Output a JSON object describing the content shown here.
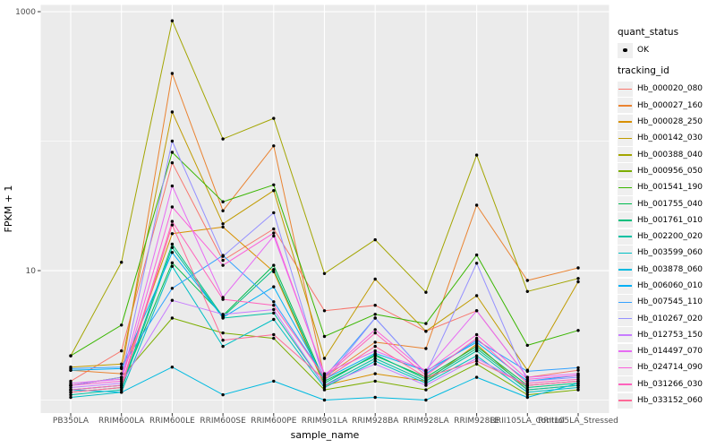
{
  "figure": {
    "background": "#FFFFFF",
    "panel_background": "#EBEBEB",
    "grid_color": "#FFFFFF",
    "axis_text_color": "#4D4D4D",
    "axis_title_color": "#000000",
    "tick_color": "#333333",
    "point_color": "#000000"
  },
  "legend": {
    "quant_title": "quant_status",
    "quant_items": [
      "OK"
    ],
    "tracking_title": "tracking_id"
  },
  "chart_data": {
    "type": "line",
    "title": "",
    "xlabel": "sample_name",
    "ylabel": "FPKM + 1",
    "y_scale": "log10",
    "grid": true,
    "legend_position": "right",
    "y_major_ticks": [
      {
        "value": 10,
        "label": "10"
      },
      {
        "value": 1000,
        "label": "1000"
      }
    ],
    "y_minor_ticks": [
      1,
      100
    ],
    "ylim_log10": [
      -0.1,
      3.05
    ],
    "categories": [
      "PB350LA",
      "RRIM600LA",
      "RRIM600LE",
      "RRIM600SE",
      "RRIM600PE",
      "RRIM901LA",
      "RRIM928BA",
      "RRIM928LA",
      "RRIM928LE",
      "RRII105LA_Control",
      "RRII105LA_Stressed"
    ],
    "series": [
      {
        "name": "Hb_000020_080",
        "color": "#F8766D",
        "quant_status": "OK",
        "values": [
          1.4,
          2.4,
          68,
          12,
          21,
          4.9,
          5.4,
          3.4,
          4.9,
          1.5,
          1.7
        ]
      },
      {
        "name": "Hb_000027_160",
        "color": "#EA8331",
        "quant_status": "OK",
        "values": [
          1.7,
          1.6,
          333,
          29,
          92,
          1.5,
          2.8,
          2.5,
          32,
          8.4,
          10.5
        ]
      },
      {
        "name": "Hb_000028_250",
        "color": "#D89000",
        "quant_status": "OK",
        "values": [
          1.3,
          1.5,
          19.3,
          21.7,
          9.8,
          1.3,
          1.6,
          1.4,
          2.7,
          1.2,
          1.3
        ]
      },
      {
        "name": "Hb_000142_030",
        "color": "#C09B00",
        "quant_status": "OK",
        "values": [
          1.8,
          1.9,
          168,
          23,
          41.5,
          2.1,
          8.6,
          3.4,
          6.4,
          1.7,
          8.2
        ]
      },
      {
        "name": "Hb_000388_040",
        "color": "#A3A500",
        "quant_status": "OK",
        "values": [
          2.2,
          11.6,
          850,
          104,
          150,
          9.5,
          17.3,
          6.8,
          78,
          6.9,
          8.7
        ]
      },
      {
        "name": "Hb_000956_050",
        "color": "#7CAE00",
        "quant_status": "OK",
        "values": [
          1.3,
          1.5,
          4.3,
          3.3,
          3.0,
          1.2,
          1.4,
          1.2,
          1.9,
          1.1,
          1.2
        ]
      },
      {
        "name": "Hb_001541_190",
        "color": "#39B600",
        "quant_status": "OK",
        "values": [
          2.2,
          3.8,
          82,
          34,
          46,
          3.1,
          4.6,
          3.9,
          13.2,
          2.65,
          3.45
        ]
      },
      {
        "name": "Hb_001755_040",
        "color": "#00BB4E",
        "quant_status": "OK",
        "values": [
          1.2,
          1.3,
          11.5,
          4.5,
          11,
          1.4,
          2.2,
          1.5,
          2.6,
          1.3,
          1.4
        ]
      },
      {
        "name": "Hb_001761_010",
        "color": "#00BF7D",
        "quant_status": "OK",
        "values": [
          1.15,
          1.25,
          16,
          4.4,
          10.2,
          1.35,
          2.25,
          1.45,
          2.5,
          1.25,
          1.35
        ]
      },
      {
        "name": "Hb_002200_020",
        "color": "#00C1A3",
        "quant_status": "OK",
        "values": [
          1.1,
          1.2,
          15.1,
          4.3,
          4.7,
          1.3,
          2.1,
          1.4,
          2.4,
          1.2,
          1.3
        ]
      },
      {
        "name": "Hb_003599_060",
        "color": "#00BFC4",
        "quant_status": "OK",
        "values": [
          1.05,
          1.15,
          10.8,
          2.6,
          4.2,
          1.25,
          2.0,
          1.35,
          2.2,
          1.15,
          1.25
        ]
      },
      {
        "name": "Hb_003878_060",
        "color": "#00BAE0",
        "quant_status": "OK",
        "values": [
          1.2,
          1.15,
          1.8,
          1.1,
          1.4,
          1.0,
          1.05,
          1.0,
          1.5,
          1.05,
          1.35
        ]
      },
      {
        "name": "Hb_006060_010",
        "color": "#00B0F6",
        "quant_status": "OK",
        "values": [
          1.7,
          1.75,
          13.8,
          4.35,
          7.5,
          1.45,
          2.3,
          1.68,
          2.8,
          1.4,
          1.55
        ]
      },
      {
        "name": "Hb_007545_110",
        "color": "#35A2FF",
        "quant_status": "OK",
        "values": [
          1.75,
          1.8,
          7.3,
          13.1,
          5.75,
          1.5,
          4.3,
          1.6,
          2.9,
          1.67,
          1.78
        ]
      },
      {
        "name": "Hb_010267_020",
        "color": "#9590FF",
        "quant_status": "OK",
        "values": [
          1.3,
          1.5,
          100,
          12.9,
          28,
          1.4,
          4.3,
          1.6,
          11.4,
          1.4,
          1.5
        ]
      },
      {
        "name": "Hb_012753_150",
        "color": "#C77CFF",
        "quant_status": "OK",
        "values": [
          1.25,
          1.35,
          5.9,
          4.6,
          5.0,
          1.3,
          1.9,
          1.3,
          2.1,
          1.3,
          1.4
        ]
      },
      {
        "name": "Hb_014497_070",
        "color": "#E76BF3",
        "quant_status": "OK",
        "values": [
          1.35,
          1.45,
          45,
          6.2,
          18.5,
          1.6,
          2.4,
          1.7,
          4.9,
          1.5,
          1.6
        ]
      },
      {
        "name": "Hb_024714_090",
        "color": "#FA62DB",
        "quant_status": "OK",
        "values": [
          1.3,
          1.4,
          31,
          11,
          19.5,
          1.55,
          3.5,
          1.65,
          3.2,
          1.45,
          1.55
        ]
      },
      {
        "name": "Hb_031266_030",
        "color": "#FF62BC",
        "quant_status": "OK",
        "values": [
          1.2,
          1.3,
          24,
          6.0,
          5.4,
          1.5,
          3.3,
          1.55,
          3.0,
          1.35,
          1.45
        ]
      },
      {
        "name": "Hb_033152_060",
        "color": "#FF6A98",
        "quant_status": "OK",
        "values": [
          1.15,
          1.25,
          22.5,
          2.9,
          3.2,
          1.45,
          2.6,
          1.5,
          2.0,
          1.3,
          1.4
        ]
      }
    ]
  }
}
